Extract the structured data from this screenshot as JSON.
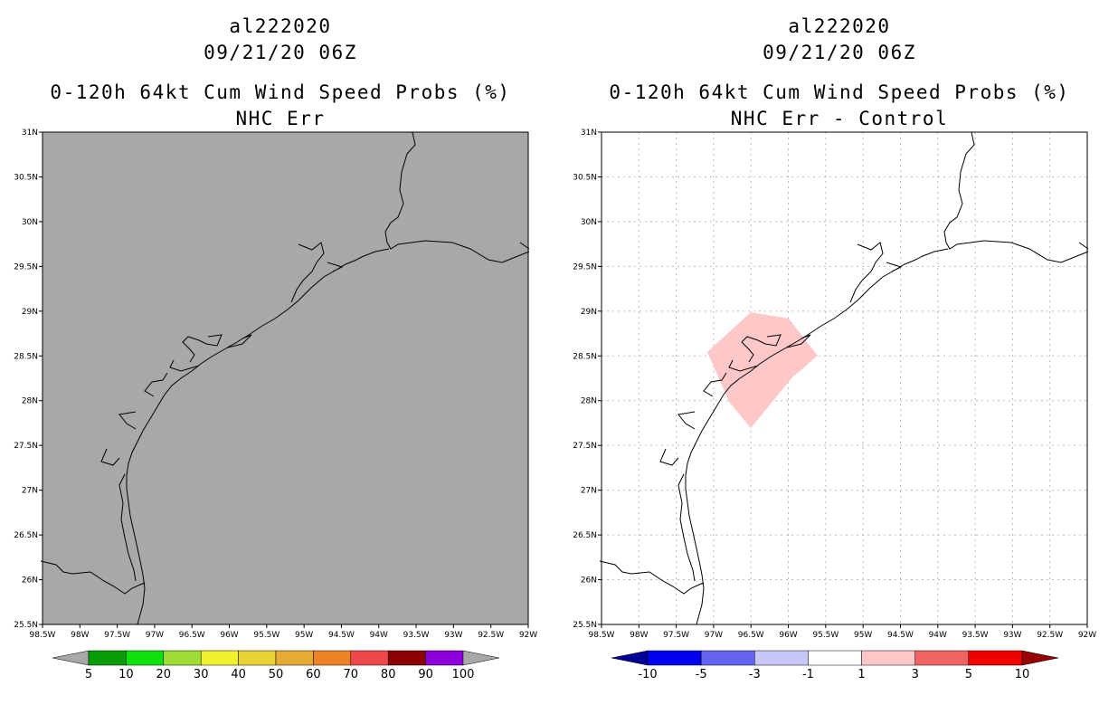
{
  "panels": [
    {
      "storm": "al222020",
      "datetime": "09/21/20 06Z",
      "title": "0-120h 64kt Cum Wind Speed Probs (%)",
      "subtitle": "NHC Err",
      "background": "#a8a8a8",
      "grid": false,
      "colorbar": {
        "labels": [
          "5",
          "10",
          "20",
          "30",
          "40",
          "50",
          "60",
          "70",
          "80",
          "90",
          "100"
        ],
        "colors": [
          "#a8a8a8",
          "#079d09",
          "#0ee10d",
          "#a0dc36",
          "#f0f02c",
          "#e6d233",
          "#e6aa35",
          "#ee8226",
          "#ef4848",
          "#8c0101",
          "#8c00dc",
          "#a8a8a8"
        ]
      }
    },
    {
      "storm": "al222020",
      "datetime": "09/21/20 06Z",
      "title": "0-120h 64kt Cum Wind Speed Probs (%)",
      "subtitle": "NHC Err - Control",
      "background": "#ffffff",
      "grid": true,
      "highlight_color": "#ffc8c8",
      "colorbar": {
        "labels": [
          "-10",
          "-5",
          "-3",
          "-1",
          "1",
          "3",
          "5",
          "10"
        ],
        "colors": [
          "#000096",
          "#0000f0",
          "#6464f0",
          "#c8c8f8",
          "#ffffff",
          "#ffc8c8",
          "#f06464",
          "#f00000",
          "#960000"
        ]
      }
    }
  ],
  "axes": {
    "lat_labels": [
      "31N",
      "30.5N",
      "30N",
      "29.5N",
      "29N",
      "28.5N",
      "28N",
      "27.5N",
      "27N",
      "26.5N",
      "26N",
      "25.5N"
    ],
    "lon_labels": [
      "98.5W",
      "98W",
      "97.5W",
      "97W",
      "96.5W",
      "96W",
      "95.5W",
      "95W",
      "94.5W",
      "94W",
      "93.5W",
      "93W",
      "92.5W",
      "92W"
    ]
  }
}
